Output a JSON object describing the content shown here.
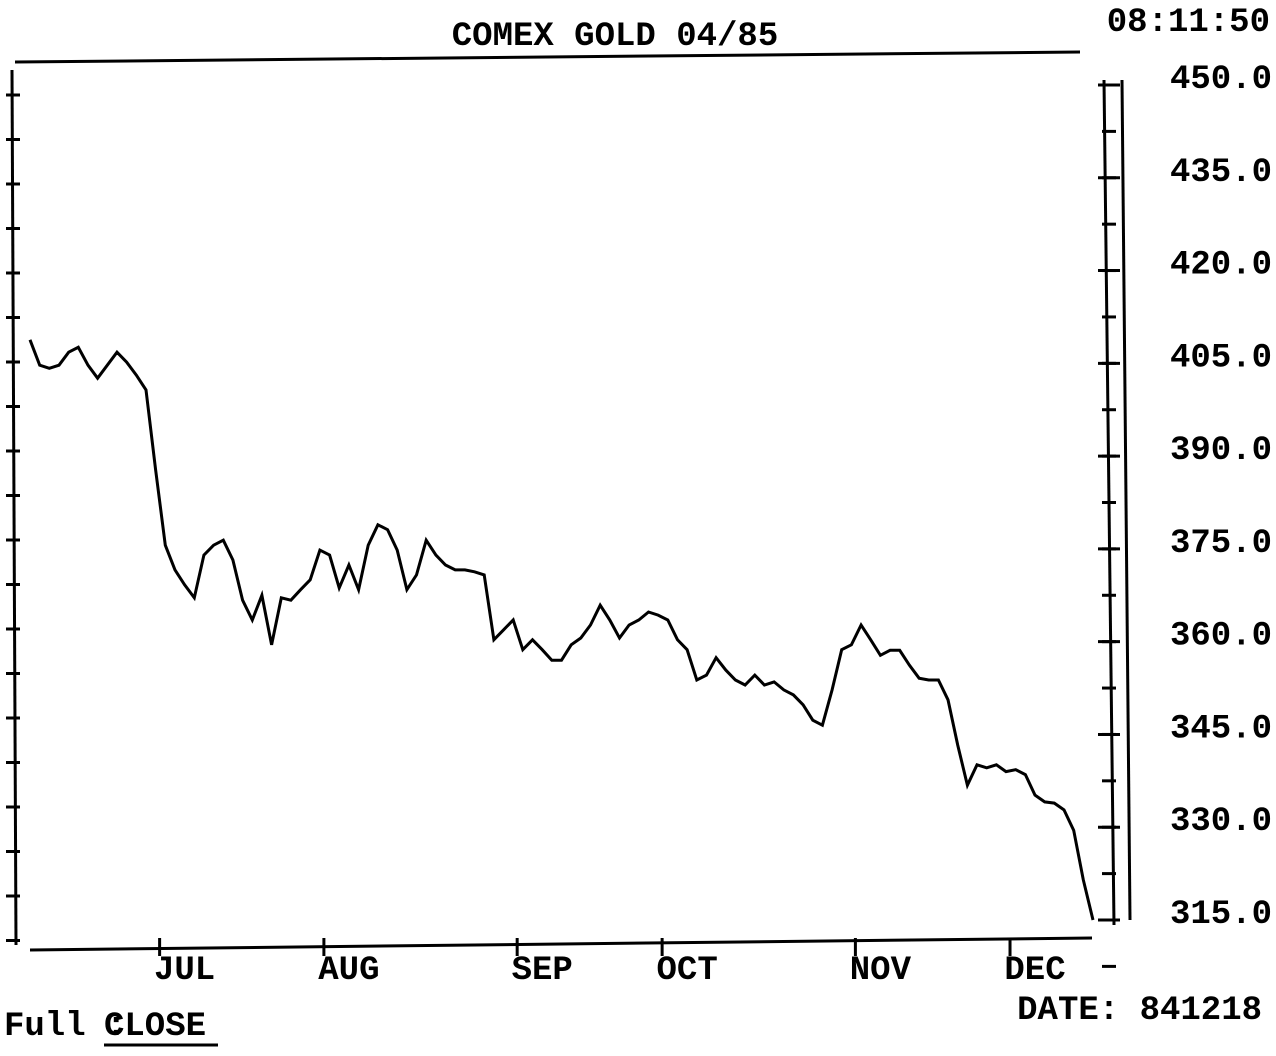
{
  "chart_data": {
    "type": "line",
    "title": "COMEX GOLD 04/85",
    "time": "08:11:50",
    "footer_mode": "Full :",
    "footer_field": "CLOSE",
    "footer_date": "DATE: 841218",
    "color": "#000000",
    "x": [
      0,
      1,
      2,
      3,
      4,
      5,
      6,
      7,
      8,
      9,
      10,
      11,
      12,
      13,
      14,
      15,
      16,
      17,
      18,
      19,
      20,
      21,
      22,
      23,
      24,
      25,
      26,
      27,
      28,
      29,
      30,
      31,
      32,
      33,
      34,
      35,
      36,
      37,
      38,
      39,
      40,
      41,
      42,
      43,
      44,
      45,
      46,
      47,
      48,
      49,
      50,
      51,
      52,
      53,
      54,
      55,
      56,
      57,
      58,
      59,
      60,
      61,
      62,
      63,
      64,
      65,
      66,
      67,
      68,
      69,
      70,
      71,
      72,
      73,
      74,
      75,
      76,
      77,
      78,
      79,
      80,
      81,
      82,
      83,
      84,
      85,
      86,
      87,
      88,
      89,
      90,
      91,
      92,
      93,
      94,
      95,
      96,
      97,
      98,
      99,
      100,
      101,
      102,
      103,
      104,
      105,
      106,
      107,
      108,
      109,
      110
    ],
    "values": [
      408.8,
      404.7,
      404.2,
      404.7,
      406.8,
      407.6,
      404.7,
      402.6,
      404.7,
      406.8,
      405.2,
      403.1,
      400.7,
      387.8,
      375.6,
      371.6,
      369.2,
      367.1,
      374.0,
      375.6,
      376.4,
      373.2,
      366.7,
      363.5,
      367.5,
      359.5,
      367.1,
      366.7,
      368.4,
      370.0,
      374.8,
      374.0,
      368.7,
      372.4,
      368.4,
      375.6,
      378.9,
      378.1,
      374.8,
      368.4,
      370.8,
      376.4,
      374.0,
      372.4,
      371.6,
      371.6,
      371.3,
      370.8,
      360.3,
      361.9,
      363.5,
      358.7,
      360.3,
      358.7,
      357.0,
      357.0,
      359.5,
      360.6,
      362.7,
      365.9,
      363.5,
      360.6,
      362.7,
      363.5,
      364.8,
      364.3,
      363.5,
      360.3,
      358.7,
      353.8,
      354.6,
      357.4,
      355.4,
      353.8,
      353.0,
      354.6,
      353.0,
      353.5,
      352.2,
      351.4,
      349.8,
      347.3,
      346.5,
      352.2,
      358.7,
      359.5,
      362.7,
      360.3,
      357.8,
      358.6,
      358.6,
      356.2,
      354.1,
      353.8,
      353.8,
      350.6,
      343.3,
      336.8,
      340.1,
      339.6,
      340.1,
      339.0,
      339.3,
      338.5,
      335.2,
      334.1,
      333.9,
      332.8,
      329.5,
      321.5,
      315.0
    ],
    "xlim": [
      0,
      110
    ],
    "xticks": [
      {
        "value": 16,
        "label": "JUL"
      },
      {
        "value": 33,
        "label": "AUG"
      },
      {
        "value": 53,
        "label": "SEP"
      },
      {
        "value": 68,
        "label": "OCT"
      },
      {
        "value": 88,
        "label": "NOV"
      },
      {
        "value": 104,
        "label": "DEC"
      }
    ],
    "ylim": [
      315,
      450
    ],
    "yticks": [
      {
        "value": 450,
        "label": "450.0"
      },
      {
        "value": 435,
        "label": "435.0"
      },
      {
        "value": 420,
        "label": "420.0"
      },
      {
        "value": 405,
        "label": "405.0"
      },
      {
        "value": 390,
        "label": "390.0"
      },
      {
        "value": 375,
        "label": "375.0"
      },
      {
        "value": 360,
        "label": "360.0"
      },
      {
        "value": 345,
        "label": "345.0"
      },
      {
        "value": 330,
        "label": "330.0"
      },
      {
        "value": 315,
        "label": "315.0"
      }
    ]
  }
}
